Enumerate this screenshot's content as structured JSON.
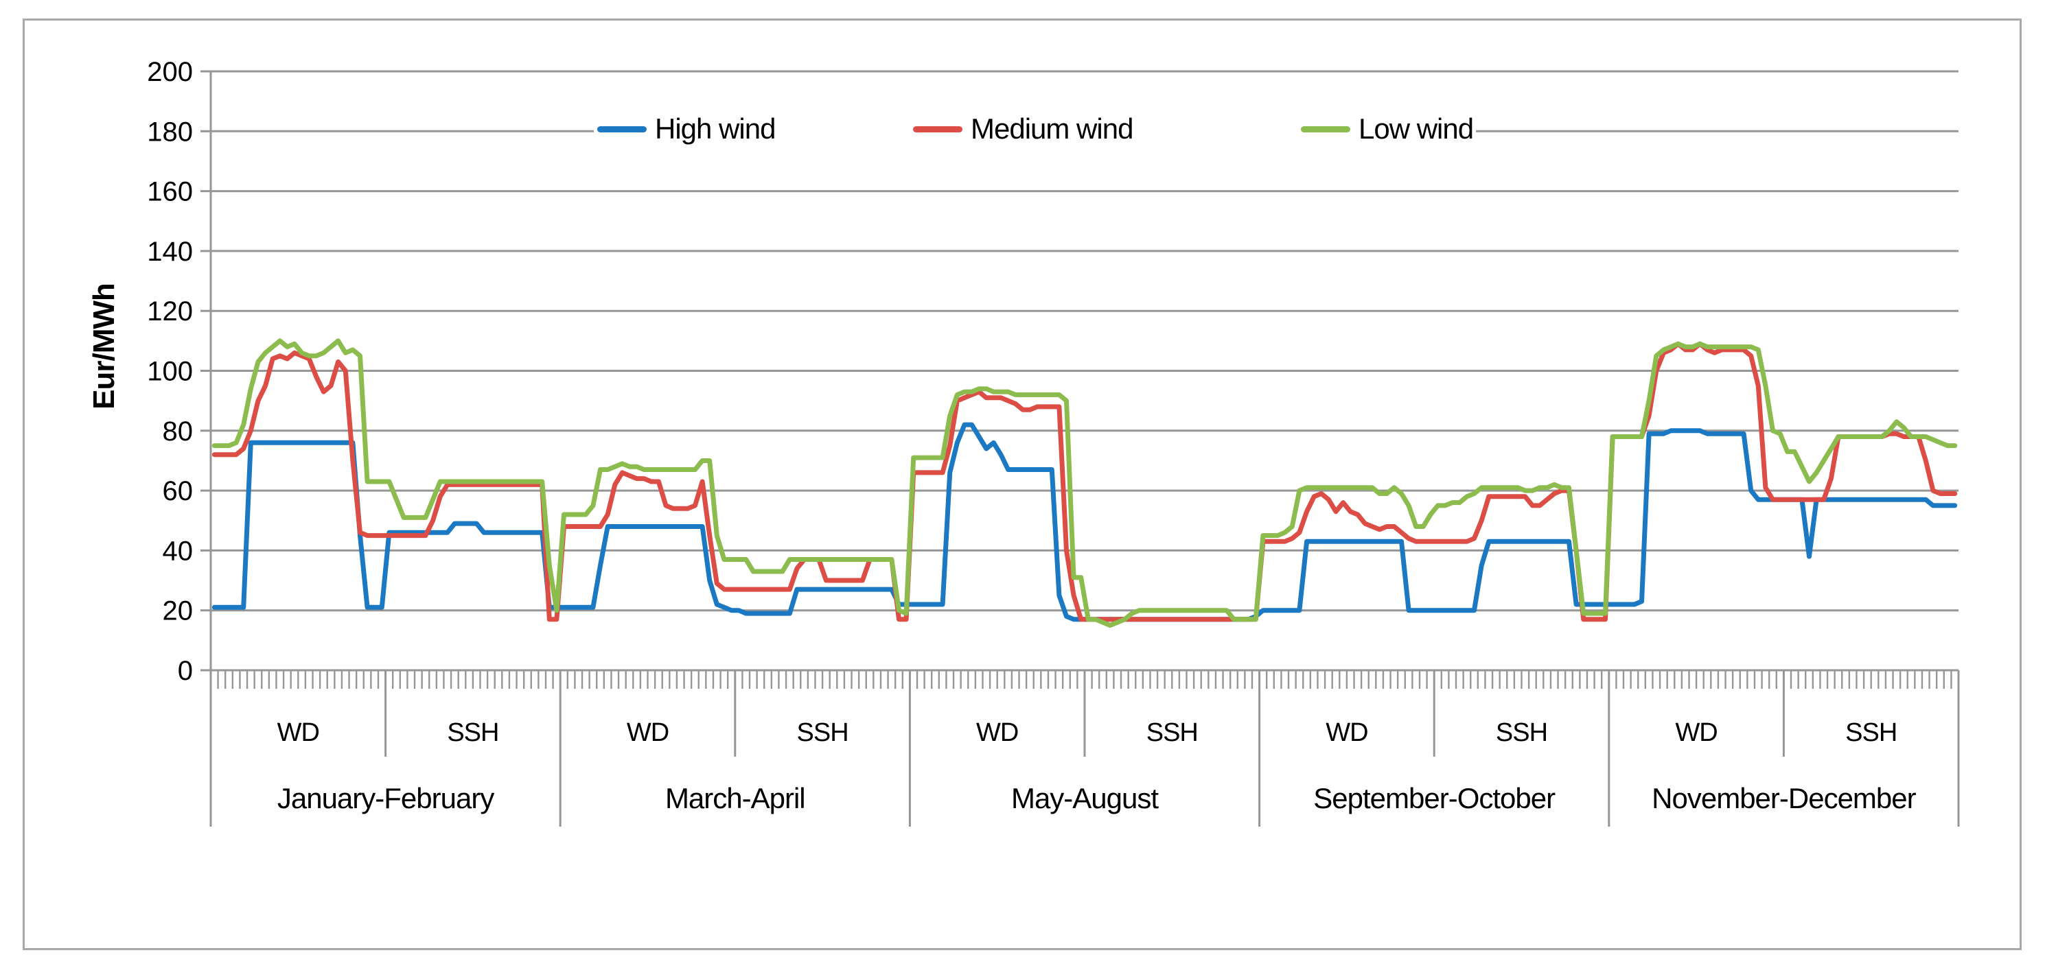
{
  "y_axis": {
    "title": "Eur/MWh",
    "tick_labels": [
      "0",
      "20",
      "40",
      "60",
      "80",
      "100",
      "120",
      "140",
      "160",
      "180",
      "200"
    ]
  },
  "legend": {
    "items": [
      {
        "label": "High wind",
        "color": "#1b78c3"
      },
      {
        "label": "Medium wind",
        "color": "#dc4e45"
      },
      {
        "label": "Low wind",
        "color": "#8cbb4e"
      }
    ]
  },
  "styling": {
    "gridline_color": "#969696",
    "axis_color": "#969696",
    "text_color": "#000000"
  },
  "chart_data": {
    "type": "line",
    "title": "",
    "ylabel": "Eur/MWh",
    "ylim": [
      0,
      200
    ],
    "ytick_step": 20,
    "grid": true,
    "legend_position": "top-center",
    "series_names": [
      "High wind",
      "Medium wind",
      "Low wind"
    ],
    "series_colors": [
      "#1b78c3",
      "#dc4e45",
      "#8cbb4e"
    ],
    "x_structure": {
      "periods": [
        "January-February",
        "March-April",
        "May-August",
        "September-October",
        "November-December"
      ],
      "day_types": [
        "WD",
        "SSH"
      ],
      "points_per_segment": 24,
      "note": "hourly price profiles (24 h) per day-type within each period"
    },
    "segments": [
      {
        "period": "January-February",
        "day_type": "WD",
        "high_wind": [
          21,
          21,
          21,
          21,
          21,
          76,
          76,
          76,
          76,
          76,
          76,
          76,
          76,
          76,
          76,
          76,
          76,
          76,
          76,
          76,
          45,
          21,
          21,
          21
        ],
        "medium_wind": [
          72,
          72,
          72,
          72,
          74,
          80,
          90,
          95,
          104,
          105,
          104,
          106,
          105,
          104,
          98,
          93,
          95,
          103,
          100,
          70,
          46,
          45,
          45,
          45
        ],
        "low_wind": [
          75,
          75,
          75,
          76,
          82,
          94,
          103,
          106,
          108,
          110,
          108,
          109,
          106,
          105,
          105,
          106,
          108,
          110,
          106,
          107,
          105,
          63,
          63,
          63
        ]
      },
      {
        "period": "January-February",
        "day_type": "SSH",
        "high_wind": [
          46,
          46,
          46,
          46,
          46,
          46,
          46,
          46,
          46,
          49,
          49,
          49,
          49,
          46,
          46,
          46,
          46,
          46,
          46,
          46,
          46,
          46,
          21,
          21
        ],
        "medium_wind": [
          45,
          45,
          45,
          45,
          45,
          45,
          50,
          58,
          62,
          62,
          62,
          62,
          62,
          62,
          62,
          62,
          62,
          62,
          62,
          62,
          62,
          62,
          17,
          17
        ],
        "low_wind": [
          63,
          57,
          51,
          51,
          51,
          51,
          57,
          63,
          63,
          63,
          63,
          63,
          63,
          63,
          63,
          63,
          63,
          63,
          63,
          63,
          63,
          63,
          35,
          20
        ]
      },
      {
        "period": "March-April",
        "day_type": "WD",
        "high_wind": [
          21,
          21,
          21,
          21,
          21,
          35,
          48,
          48,
          48,
          48,
          48,
          48,
          48,
          48,
          48,
          48,
          48,
          48,
          48,
          48,
          30,
          22,
          21,
          20
        ],
        "medium_wind": [
          48,
          48,
          48,
          48,
          48,
          48,
          52,
          62,
          66,
          65,
          64,
          64,
          63,
          63,
          55,
          54,
          54,
          54,
          55,
          63,
          45,
          29,
          27,
          27
        ],
        "low_wind": [
          52,
          52,
          52,
          52,
          55,
          67,
          67,
          68,
          69,
          68,
          68,
          67,
          67,
          67,
          67,
          67,
          67,
          67,
          67,
          70,
          70,
          45,
          37,
          37
        ]
      },
      {
        "period": "March-April",
        "day_type": "SSH",
        "high_wind": [
          20,
          19,
          19,
          19,
          19,
          19,
          19,
          19,
          27,
          27,
          27,
          27,
          27,
          27,
          27,
          27,
          27,
          27,
          27,
          27,
          27,
          27,
          22,
          22
        ],
        "medium_wind": [
          27,
          27,
          27,
          27,
          27,
          27,
          27,
          27,
          34,
          37,
          37,
          37,
          30,
          30,
          30,
          30,
          30,
          30,
          37,
          37,
          37,
          37,
          17,
          17
        ],
        "low_wind": [
          37,
          37,
          33,
          33,
          33,
          33,
          33,
          37,
          37,
          37,
          37,
          37,
          37,
          37,
          37,
          37,
          37,
          37,
          37,
          37,
          37,
          37,
          20,
          19
        ]
      },
      {
        "period": "May-August",
        "day_type": "WD",
        "high_wind": [
          22,
          22,
          22,
          22,
          22,
          66,
          76,
          82,
          82,
          78,
          74,
          76,
          72,
          67,
          67,
          67,
          67,
          67,
          67,
          67,
          25,
          18,
          17,
          17
        ],
        "medium_wind": [
          66,
          66,
          66,
          66,
          66,
          75,
          90,
          91,
          92,
          93,
          91,
          91,
          91,
          90,
          89,
          87,
          87,
          88,
          88,
          88,
          88,
          40,
          25,
          17
        ],
        "low_wind": [
          71,
          71,
          71,
          71,
          71,
          85,
          92,
          93,
          93,
          94,
          94,
          93,
          93,
          93,
          92,
          92,
          92,
          92,
          92,
          92,
          92,
          90,
          31,
          31
        ]
      },
      {
        "period": "May-August",
        "day_type": "SSH",
        "high_wind": [
          17,
          17,
          17,
          17,
          17,
          17,
          17,
          17,
          17,
          17,
          17,
          17,
          17,
          17,
          17,
          17,
          17,
          17,
          17,
          17,
          17,
          17,
          17,
          18
        ],
        "medium_wind": [
          17,
          17,
          17,
          17,
          17,
          17,
          17,
          17,
          17,
          17,
          17,
          17,
          17,
          17,
          17,
          17,
          17,
          17,
          17,
          17,
          17,
          17,
          17,
          17
        ],
        "low_wind": [
          17,
          17,
          16,
          15,
          16,
          17,
          19,
          20,
          20,
          20,
          20,
          20,
          20,
          20,
          20,
          20,
          20,
          20,
          20,
          20,
          17,
          17,
          17,
          17
        ]
      },
      {
        "period": "September-October",
        "day_type": "WD",
        "high_wind": [
          20,
          20,
          20,
          20,
          20,
          20,
          43,
          43,
          43,
          43,
          43,
          43,
          43,
          43,
          43,
          43,
          43,
          43,
          43,
          43,
          20,
          20,
          20,
          20
        ],
        "medium_wind": [
          43,
          43,
          43,
          43,
          44,
          46,
          53,
          58,
          59,
          57,
          53,
          56,
          53,
          52,
          49,
          48,
          47,
          48,
          48,
          46,
          44,
          43,
          43,
          43
        ],
        "low_wind": [
          45,
          45,
          45,
          46,
          48,
          60,
          61,
          61,
          61,
          61,
          61,
          61,
          61,
          61,
          61,
          61,
          59,
          59,
          61,
          59,
          55,
          48,
          48,
          52
        ]
      },
      {
        "period": "September-October",
        "day_type": "SSH",
        "high_wind": [
          20,
          20,
          20,
          20,
          20,
          20,
          35,
          43,
          43,
          43,
          43,
          43,
          43,
          43,
          43,
          43,
          43,
          43,
          43,
          22,
          22,
          22,
          22,
          22
        ],
        "medium_wind": [
          43,
          43,
          43,
          43,
          43,
          44,
          50,
          58,
          58,
          58,
          58,
          58,
          58,
          55,
          55,
          57,
          59,
          60,
          60,
          40,
          17,
          17,
          17,
          17
        ],
        "low_wind": [
          55,
          55,
          56,
          56,
          58,
          59,
          61,
          61,
          61,
          61,
          61,
          61,
          60,
          60,
          61,
          61,
          62,
          61,
          61,
          40,
          19,
          19,
          19,
          19
        ]
      },
      {
        "period": "November-December",
        "day_type": "WD",
        "high_wind": [
          22,
          22,
          22,
          22,
          23,
          79,
          79,
          79,
          80,
          80,
          80,
          80,
          80,
          79,
          79,
          79,
          79,
          79,
          79,
          60,
          57,
          57,
          57,
          57
        ],
        "medium_wind": [
          78,
          78,
          78,
          78,
          78,
          85,
          100,
          106,
          107,
          109,
          107,
          107,
          109,
          107,
          106,
          107,
          107,
          107,
          107,
          105,
          95,
          61,
          57,
          57
        ],
        "low_wind": [
          78,
          78,
          78,
          78,
          78,
          90,
          105,
          107,
          108,
          109,
          108,
          108,
          109,
          108,
          108,
          108,
          108,
          108,
          108,
          108,
          107,
          95,
          80,
          79
        ]
      },
      {
        "period": "November-December",
        "day_type": "SSH",
        "high_wind": [
          57,
          57,
          57,
          38,
          57,
          57,
          57,
          57,
          57,
          57,
          57,
          57,
          57,
          57,
          57,
          57,
          57,
          57,
          57,
          57,
          55,
          55,
          55,
          55
        ],
        "medium_wind": [
          57,
          57,
          57,
          57,
          57,
          57,
          64,
          78,
          78,
          78,
          78,
          78,
          78,
          78,
          79,
          79,
          78,
          78,
          78,
          70,
          60,
          59,
          59,
          59
        ],
        "low_wind": [
          73,
          73,
          68,
          63,
          66,
          70,
          74,
          78,
          78,
          78,
          78,
          78,
          78,
          78,
          80,
          83,
          81,
          78,
          78,
          78,
          77,
          76,
          75,
          75
        ]
      }
    ]
  }
}
